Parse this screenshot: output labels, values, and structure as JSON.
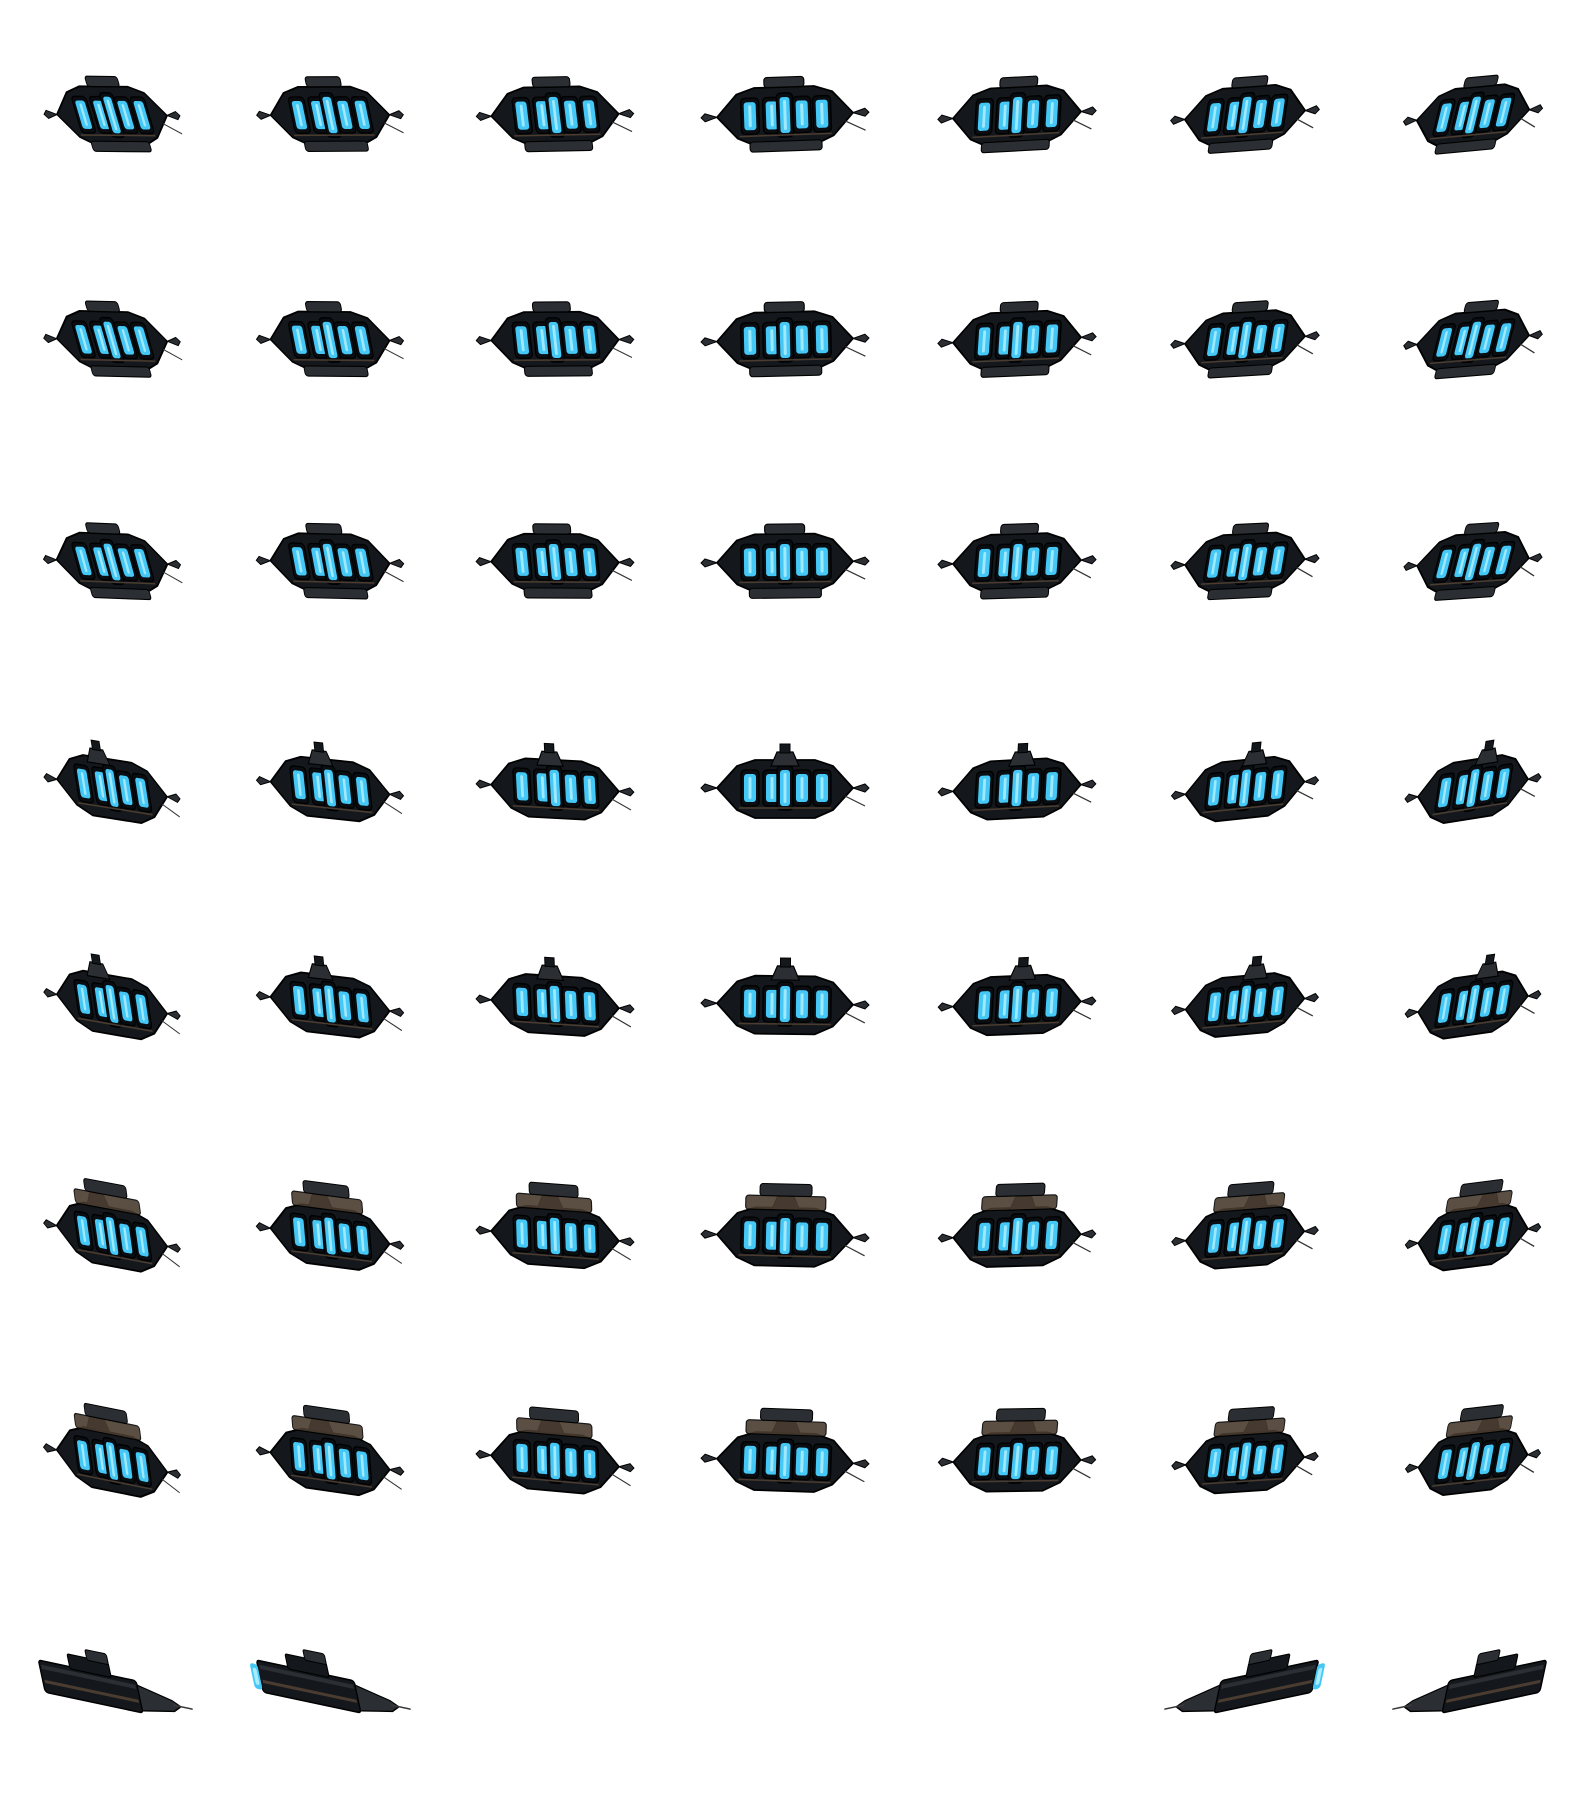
{
  "sheet": {
    "background": "#ffffff",
    "sprite_name": "dark-hull-cruiser-with-cyan-glowing-panels",
    "palette": {
      "hull_dark": "#14181c",
      "hull_mid": "#2b2f33",
      "hull_rust": "#4a3c30",
      "glow": "#45c8f5",
      "glow_core": "#a9ecff"
    },
    "grid": {
      "columns": 7,
      "rows": 8,
      "empty_cells": [
        [
          7,
          2
        ],
        [
          7,
          3
        ],
        [
          7,
          4
        ]
      ]
    },
    "frames": [
      [
        {
          "yaw": -3,
          "pitch": -3,
          "engine_glow": false
        },
        {
          "yaw": -2,
          "pitch": -3,
          "engine_glow": false
        },
        {
          "yaw": -1,
          "pitch": -3,
          "engine_glow": false
        },
        {
          "yaw": 0,
          "pitch": -3,
          "engine_glow": false
        },
        {
          "yaw": 1,
          "pitch": -3,
          "engine_glow": false
        },
        {
          "yaw": 2,
          "pitch": -3,
          "engine_glow": false
        },
        {
          "yaw": 3,
          "pitch": -3,
          "engine_glow": false
        }
      ],
      [
        {
          "yaw": -3,
          "pitch": -2,
          "engine_glow": false
        },
        {
          "yaw": -2,
          "pitch": -2,
          "engine_glow": false
        },
        {
          "yaw": -1,
          "pitch": -2,
          "engine_glow": false
        },
        {
          "yaw": 0,
          "pitch": -2,
          "engine_glow": false
        },
        {
          "yaw": 1,
          "pitch": -2,
          "engine_glow": false
        },
        {
          "yaw": 2,
          "pitch": -2,
          "engine_glow": false
        },
        {
          "yaw": 3,
          "pitch": -2,
          "engine_glow": false
        }
      ],
      [
        {
          "yaw": -3,
          "pitch": -1,
          "engine_glow": false
        },
        {
          "yaw": -2,
          "pitch": -1,
          "engine_glow": false
        },
        {
          "yaw": -1,
          "pitch": -1,
          "engine_glow": false
        },
        {
          "yaw": 0,
          "pitch": -1,
          "engine_glow": false
        },
        {
          "yaw": 1,
          "pitch": -1,
          "engine_glow": false
        },
        {
          "yaw": 2,
          "pitch": -1,
          "engine_glow": false
        },
        {
          "yaw": 3,
          "pitch": -1,
          "engine_glow": false
        }
      ],
      [
        {
          "yaw": -3,
          "pitch": 0,
          "engine_glow": false
        },
        {
          "yaw": -2,
          "pitch": 0,
          "engine_glow": false
        },
        {
          "yaw": -1,
          "pitch": 0,
          "engine_glow": false
        },
        {
          "yaw": 0,
          "pitch": 0,
          "engine_glow": false
        },
        {
          "yaw": 1,
          "pitch": 0,
          "engine_glow": false
        },
        {
          "yaw": 2,
          "pitch": 0,
          "engine_glow": false
        },
        {
          "yaw": 3,
          "pitch": 0,
          "engine_glow": false
        }
      ],
      [
        {
          "yaw": -3,
          "pitch": 1,
          "engine_glow": false
        },
        {
          "yaw": -2,
          "pitch": 1,
          "engine_glow": false
        },
        {
          "yaw": -1,
          "pitch": 1,
          "engine_glow": false
        },
        {
          "yaw": 0,
          "pitch": 1,
          "engine_glow": false
        },
        {
          "yaw": 1,
          "pitch": 1,
          "engine_glow": false
        },
        {
          "yaw": 2,
          "pitch": 1,
          "engine_glow": false
        },
        {
          "yaw": 3,
          "pitch": 1,
          "engine_glow": false
        }
      ],
      [
        {
          "yaw": -3,
          "pitch": 2,
          "engine_glow": false
        },
        {
          "yaw": -2,
          "pitch": 2,
          "engine_glow": false
        },
        {
          "yaw": -1,
          "pitch": 2,
          "engine_glow": false
        },
        {
          "yaw": 0,
          "pitch": 2,
          "engine_glow": false
        },
        {
          "yaw": 1,
          "pitch": 2,
          "engine_glow": false
        },
        {
          "yaw": 2,
          "pitch": 2,
          "engine_glow": false
        },
        {
          "yaw": 3,
          "pitch": 2,
          "engine_glow": false
        }
      ],
      [
        {
          "yaw": -3,
          "pitch": 3,
          "engine_glow": false
        },
        {
          "yaw": -2,
          "pitch": 3,
          "engine_glow": false
        },
        {
          "yaw": -1,
          "pitch": 3,
          "engine_glow": false
        },
        {
          "yaw": 0,
          "pitch": 3,
          "engine_glow": false
        },
        {
          "yaw": 1,
          "pitch": 3,
          "engine_glow": false
        },
        {
          "yaw": 2,
          "pitch": 3,
          "engine_glow": false
        },
        {
          "yaw": 3,
          "pitch": 3,
          "engine_glow": false
        }
      ],
      [
        {
          "yaw": -4,
          "pitch": 4,
          "engine_glow": false
        },
        {
          "yaw": -4,
          "pitch": 4,
          "engine_glow": true
        },
        null,
        null,
        null,
        {
          "yaw": 4,
          "pitch": 4,
          "engine_glow": true
        },
        {
          "yaw": 4,
          "pitch": 4,
          "engine_glow": false
        }
      ]
    ]
  }
}
